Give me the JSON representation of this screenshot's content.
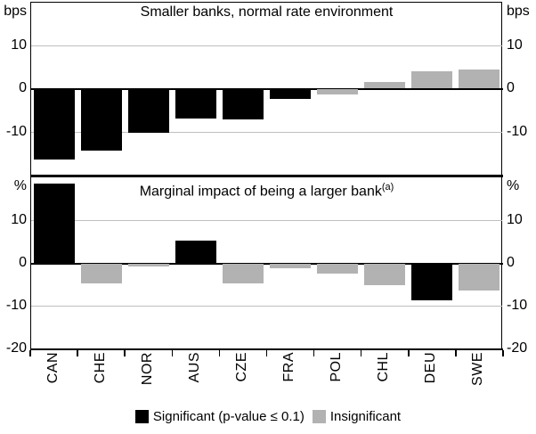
{
  "figure": {
    "background": "#ffffff",
    "colors": {
      "significant": "#000000",
      "insignificant": "#b2b2b2",
      "gridline": "#bfbfbf",
      "axis": "#000000"
    },
    "legend": [
      {
        "key": "significant",
        "label": "Significant (p-value ≤ 0.1)",
        "color": "#000000"
      },
      {
        "key": "insignificant",
        "label": "Insignificant",
        "color": "#b2b2b2"
      }
    ]
  },
  "chart_data": [
    {
      "type": "bar",
      "panel": "top",
      "title": "Smaller banks, normal rate environment",
      "unit_left": "bps",
      "unit_right": "bps",
      "ylim": [
        -20,
        20
      ],
      "ytick_labels": [
        10,
        0,
        -10
      ],
      "gridlines": [
        10,
        -10
      ],
      "grid": true,
      "legend_position": "bottom",
      "categories": [
        "CAN",
        "CHE",
        "NOR",
        "AUS",
        "CZE",
        "FRA",
        "POL",
        "CHL",
        "DEU",
        "SWE"
      ],
      "values": [
        -16.3,
        -14.3,
        -10.2,
        -6.9,
        -7.0,
        -2.3,
        -1.2,
        1.5,
        4.0,
        4.3
      ],
      "significant": [
        true,
        true,
        true,
        true,
        true,
        true,
        false,
        false,
        false,
        false
      ]
    },
    {
      "type": "bar",
      "panel": "bottom",
      "title": "Marginal impact of being a larger bank",
      "title_superscript": "(a)",
      "unit_left": "%",
      "unit_right": "%",
      "ylim": [
        -20,
        20
      ],
      "ytick_labels": [
        10,
        0,
        -10,
        -20
      ],
      "gridlines": [
        10,
        -10
      ],
      "grid": true,
      "legend_position": "bottom",
      "categories": [
        "CAN",
        "CHE",
        "NOR",
        "AUS",
        "CZE",
        "FRA",
        "POL",
        "CHL",
        "DEU",
        "SWE"
      ],
      "values": [
        18.5,
        -4.5,
        -0.7,
        5.3,
        -4.5,
        -1.0,
        -2.2,
        -5.1,
        -8.6,
        -6.3
      ],
      "significant": [
        true,
        false,
        false,
        true,
        false,
        false,
        false,
        false,
        true,
        false
      ]
    }
  ]
}
